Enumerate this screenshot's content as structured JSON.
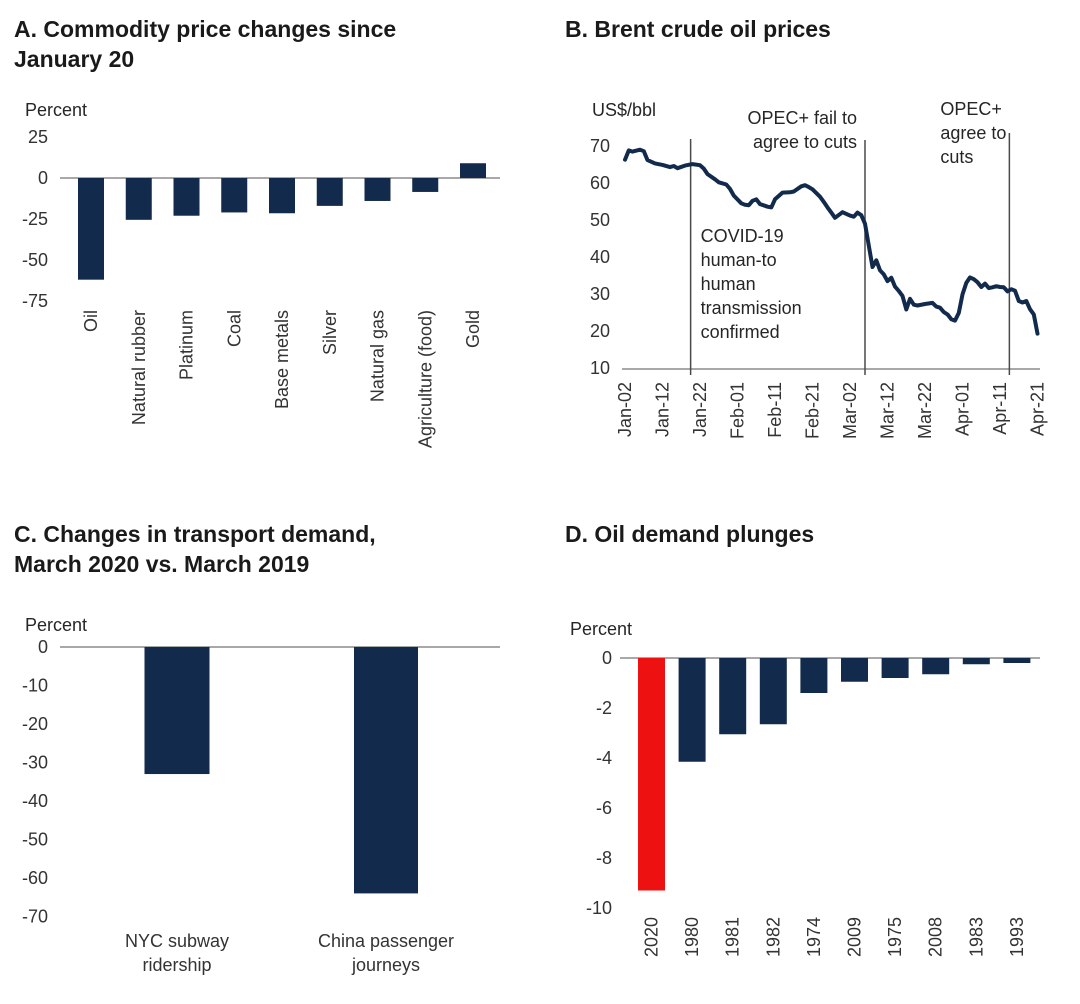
{
  "colors": {
    "navy": "#122a4c",
    "red": "#ee1111",
    "axis": "#8c8c8c",
    "event_line": "#4a4a4a",
    "tick_text": "#333333",
    "annotation_text": "#262626",
    "title_text": "#1a1a1a"
  },
  "chart_data": [
    {
      "id": "A",
      "type": "bar",
      "title": "A. Commodity price changes since January 20",
      "title_lines": [
        "A. Commodity price changes since",
        "January 20"
      ],
      "ylabel": "Percent",
      "ylim": [
        -75,
        25
      ],
      "yticks": [
        25,
        0,
        -25,
        -50,
        -75
      ],
      "grid": false,
      "categories": [
        "Oil",
        "Natural rubber",
        "Platinum",
        "Coal",
        "Base metals",
        "Silver",
        "Natural gas",
        "Agriculture (food)",
        "Gold"
      ],
      "values": [
        -62,
        -25.5,
        -23,
        -21,
        -21.5,
        -17,
        -14,
        -8.5,
        9
      ],
      "bar_color": "#122a4c"
    },
    {
      "id": "B",
      "type": "line",
      "title": "B. Brent crude oil prices",
      "title_lines": [
        "B. Brent crude oil prices"
      ],
      "ylabel": "US$/bbl",
      "ylim": [
        10,
        70
      ],
      "yticks": [
        70,
        60,
        50,
        40,
        30,
        20,
        10
      ],
      "grid": false,
      "x_ticks": [
        "Jan-02",
        "Jan-12",
        "Jan-22",
        "Feb-01",
        "Feb-11",
        "Feb-21",
        "Mar-02",
        "Mar-12",
        "Mar-22",
        "Apr-01",
        "Apr-11",
        "Apr-21"
      ],
      "x_tick_days": [
        0,
        10,
        20,
        30,
        40,
        50,
        60,
        70,
        80,
        90,
        100,
        110
      ],
      "line_color": "#122a4c",
      "series": [
        {
          "name": "Brent crude oil price",
          "points": [
            [
              0,
              66.3
            ],
            [
              1,
              68.8
            ],
            [
              2,
              68.5
            ],
            [
              4,
              69.0
            ],
            [
              5,
              68.6
            ],
            [
              6,
              66.2
            ],
            [
              8,
              65.3
            ],
            [
              10,
              64.9
            ],
            [
              12,
              64.3
            ],
            [
              13,
              64.6
            ],
            [
              14,
              64.0
            ],
            [
              16,
              64.7
            ],
            [
              18,
              65.1
            ],
            [
              20,
              64.8
            ],
            [
              21,
              63.9
            ],
            [
              22,
              62.4
            ],
            [
              24,
              61.0
            ],
            [
              25,
              60.2
            ],
            [
              27,
              59.6
            ],
            [
              28,
              58.4
            ],
            [
              29,
              56.6
            ],
            [
              31,
              54.5
            ],
            [
              32,
              54.1
            ],
            [
              33,
              54.0
            ],
            [
              34,
              55.2
            ],
            [
              35,
              55.6
            ],
            [
              36,
              54.3
            ],
            [
              38,
              53.6
            ],
            [
              39,
              53.4
            ],
            [
              40,
              55.6
            ],
            [
              42,
              57.4
            ],
            [
              44,
              57.5
            ],
            [
              45,
              57.7
            ],
            [
              47,
              59.1
            ],
            [
              48,
              59.4
            ],
            [
              49,
              58.9
            ],
            [
              50,
              58.3
            ],
            [
              52,
              56.3
            ],
            [
              53,
              54.9
            ],
            [
              54,
              53.4
            ],
            [
              55,
              52.0
            ],
            [
              56,
              50.6
            ],
            [
              58,
              52.1
            ],
            [
              60,
              51.2
            ],
            [
              61,
              50.9
            ],
            [
              62,
              52.0
            ],
            [
              63,
              51.3
            ],
            [
              64,
              49.0
            ],
            [
              66,
              37.3
            ],
            [
              67,
              39.1
            ],
            [
              68,
              36.4
            ],
            [
              69,
              35.3
            ],
            [
              70,
              33.5
            ],
            [
              71,
              34.4
            ],
            [
              72,
              32.0
            ],
            [
              73,
              30.8
            ],
            [
              74,
              29.5
            ],
            [
              75,
              25.8
            ],
            [
              76,
              28.7
            ],
            [
              77,
              27.1
            ],
            [
              78,
              26.9
            ],
            [
              80,
              27.3
            ],
            [
              82,
              27.6
            ],
            [
              83,
              26.6
            ],
            [
              84,
              26.3
            ],
            [
              85,
              25.1
            ],
            [
              86,
              24.5
            ],
            [
              87,
              23.2
            ],
            [
              88,
              22.8
            ],
            [
              89,
              24.9
            ],
            [
              90,
              29.9
            ],
            [
              91,
              33.0
            ],
            [
              92,
              34.5
            ],
            [
              93,
              34.0
            ],
            [
              94,
              33.2
            ],
            [
              95,
              31.9
            ],
            [
              96,
              32.8
            ],
            [
              97,
              31.6
            ],
            [
              98,
              31.8
            ],
            [
              99,
              32.1
            ],
            [
              100,
              31.9
            ],
            [
              101,
              31.8
            ],
            [
              102,
              30.7
            ],
            [
              103,
              31.3
            ],
            [
              104,
              30.9
            ],
            [
              105,
              28.1
            ],
            [
              106,
              27.7
            ],
            [
              107,
              28.1
            ],
            [
              108,
              25.9
            ],
            [
              109,
              24.5
            ],
            [
              110,
              19.3
            ]
          ]
        }
      ],
      "events": [
        {
          "day": 17.5,
          "label": "COVID-19 human-to human transmission confirmed",
          "label_lines": [
            "COVID-19",
            "human-to",
            "human",
            "transmission",
            "confirmed"
          ]
        },
        {
          "day": 64,
          "label": "OPEC+ fail to agree to cuts",
          "label_lines": [
            "OPEC+ fail to",
            "agree to cuts"
          ]
        },
        {
          "day": 102.5,
          "label": "OPEC+ agree to cuts",
          "label_lines": [
            "OPEC+",
            "agree to",
            "cuts"
          ]
        }
      ]
    },
    {
      "id": "C",
      "type": "bar",
      "title": "C. Changes in transport demand, March 2020 vs. March 2019",
      "title_lines": [
        "C. Changes in transport demand,",
        "March 2020 vs. March 2019"
      ],
      "ylabel": "Percent",
      "ylim": [
        -70,
        0
      ],
      "yticks": [
        0,
        -10,
        -20,
        -30,
        -40,
        -50,
        -60,
        -70
      ],
      "grid": false,
      "categories": [
        "NYC subway ridership",
        "China passenger journeys"
      ],
      "category_label_lines": [
        [
          "NYC subway",
          "ridership"
        ],
        [
          "China passenger",
          "journeys"
        ]
      ],
      "values": [
        -33,
        -64
      ],
      "bar_color": "#122a4c"
    },
    {
      "id": "D",
      "type": "bar",
      "title": "D. Oil demand plunges",
      "title_lines": [
        "D. Oil demand plunges"
      ],
      "ylabel": "Percent",
      "ylim": [
        -10,
        0
      ],
      "yticks": [
        0,
        -2,
        -4,
        -6,
        -8,
        -10
      ],
      "grid": false,
      "categories": [
        "2020",
        "1980",
        "1981",
        "1982",
        "1974",
        "2009",
        "1975",
        "2008",
        "1983",
        "1993"
      ],
      "values": [
        -9.3,
        -4.15,
        -3.05,
        -2.65,
        -1.4,
        -0.95,
        -0.8,
        -0.65,
        -0.25,
        -0.2
      ],
      "bar_color": "#122a4c",
      "highlight": {
        "index": 0,
        "color": "#ee1111"
      }
    }
  ]
}
